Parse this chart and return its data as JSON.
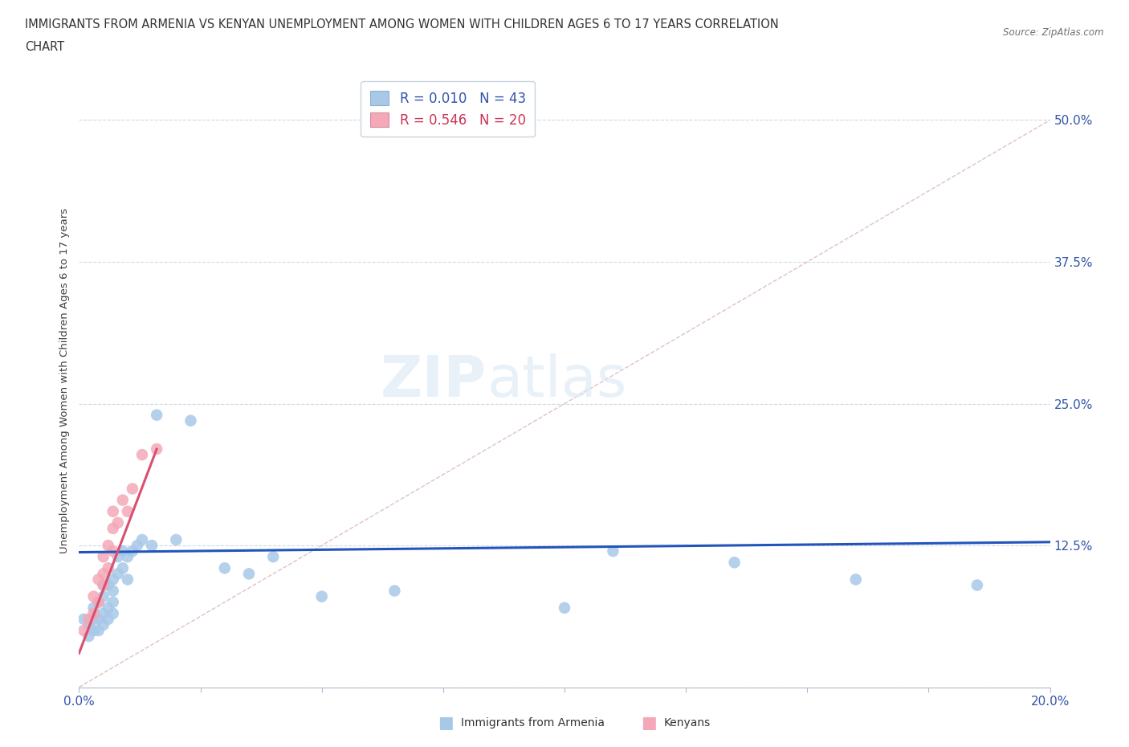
{
  "title_line1": "IMMIGRANTS FROM ARMENIA VS KENYAN UNEMPLOYMENT AMONG WOMEN WITH CHILDREN AGES 6 TO 17 YEARS CORRELATION",
  "title_line2": "CHART",
  "source": "Source: ZipAtlas.com",
  "ylabel": "Unemployment Among Women with Children Ages 6 to 17 years",
  "xlim": [
    0.0,
    0.2
  ],
  "ylim": [
    0.0,
    0.54
  ],
  "yticks": [
    0.0,
    0.125,
    0.25,
    0.375,
    0.5
  ],
  "ytick_labels": [
    "",
    "12.5%",
    "25.0%",
    "37.5%",
    "50.0%"
  ],
  "xticks": [
    0.0,
    0.025,
    0.05,
    0.075,
    0.1,
    0.125,
    0.15,
    0.175,
    0.2
  ],
  "xtick_labels": [
    "0.0%",
    "",
    "",
    "",
    "",
    "",
    "",
    "",
    "20.0%"
  ],
  "armenia_R": 0.01,
  "armenia_N": 43,
  "kenya_R": 0.546,
  "kenya_N": 20,
  "armenia_color": "#a8c8e8",
  "kenya_color": "#f4a8b8",
  "armenia_line_color": "#2255bb",
  "kenya_line_color": "#d85070",
  "diagonal_color": "#dbbbbf",
  "grid_color": "#d0d8e8",
  "background_color": "#ffffff",
  "armenia_x": [
    0.001,
    0.002,
    0.002,
    0.003,
    0.003,
    0.003,
    0.004,
    0.004,
    0.004,
    0.005,
    0.005,
    0.005,
    0.005,
    0.006,
    0.006,
    0.006,
    0.007,
    0.007,
    0.007,
    0.007,
    0.008,
    0.008,
    0.009,
    0.009,
    0.01,
    0.01,
    0.011,
    0.012,
    0.013,
    0.015,
    0.016,
    0.02,
    0.023,
    0.03,
    0.035,
    0.04,
    0.05,
    0.065,
    0.1,
    0.11,
    0.135,
    0.16,
    0.185
  ],
  "armenia_y": [
    0.06,
    0.045,
    0.055,
    0.05,
    0.06,
    0.07,
    0.05,
    0.06,
    0.075,
    0.055,
    0.065,
    0.08,
    0.09,
    0.06,
    0.07,
    0.09,
    0.065,
    0.075,
    0.085,
    0.095,
    0.1,
    0.115,
    0.105,
    0.12,
    0.095,
    0.115,
    0.12,
    0.125,
    0.13,
    0.125,
    0.24,
    0.13,
    0.235,
    0.105,
    0.1,
    0.115,
    0.08,
    0.085,
    0.07,
    0.12,
    0.11,
    0.095,
    0.09
  ],
  "kenya_x": [
    0.001,
    0.002,
    0.003,
    0.003,
    0.004,
    0.004,
    0.005,
    0.005,
    0.005,
    0.006,
    0.006,
    0.007,
    0.007,
    0.007,
    0.008,
    0.009,
    0.01,
    0.011,
    0.013,
    0.016
  ],
  "kenya_y": [
    0.05,
    0.06,
    0.065,
    0.08,
    0.075,
    0.095,
    0.09,
    0.1,
    0.115,
    0.105,
    0.125,
    0.12,
    0.14,
    0.155,
    0.145,
    0.165,
    0.155,
    0.175,
    0.205,
    0.21
  ],
  "armenia_line_x": [
    0.0,
    0.2
  ],
  "armenia_line_y": [
    0.119,
    0.128
  ],
  "kenya_line_x": [
    0.0,
    0.016
  ],
  "kenya_line_y": [
    0.03,
    0.21
  ]
}
